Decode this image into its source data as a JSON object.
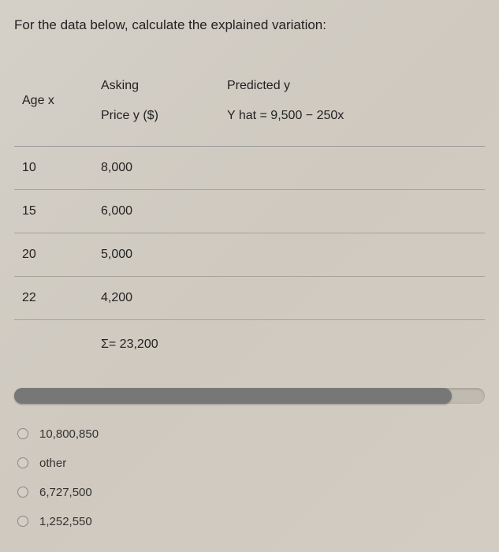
{
  "question": "For the data below, calculate the explained variation:",
  "headers": {
    "age": "Age x",
    "asking_line1": "Asking",
    "asking_line2": "Price y ($)",
    "predicted_line1": "Predicted y",
    "predicted_line2": "Y hat = 9,500 − 250x"
  },
  "rows": [
    {
      "age": "10",
      "price": "8,000"
    },
    {
      "age": "15",
      "price": "6,000"
    },
    {
      "age": "20",
      "price": "5,000"
    },
    {
      "age": "22",
      "price": "4,200"
    }
  ],
  "sum": "Σ= 23,200",
  "options": [
    "10,800,850",
    "other",
    "6,727,500",
    "1,252,550"
  ],
  "colors": {
    "background": "#d2ccc2",
    "text": "#222222",
    "border": "#a8a39a",
    "scrollbar_thumb": "#777777"
  }
}
